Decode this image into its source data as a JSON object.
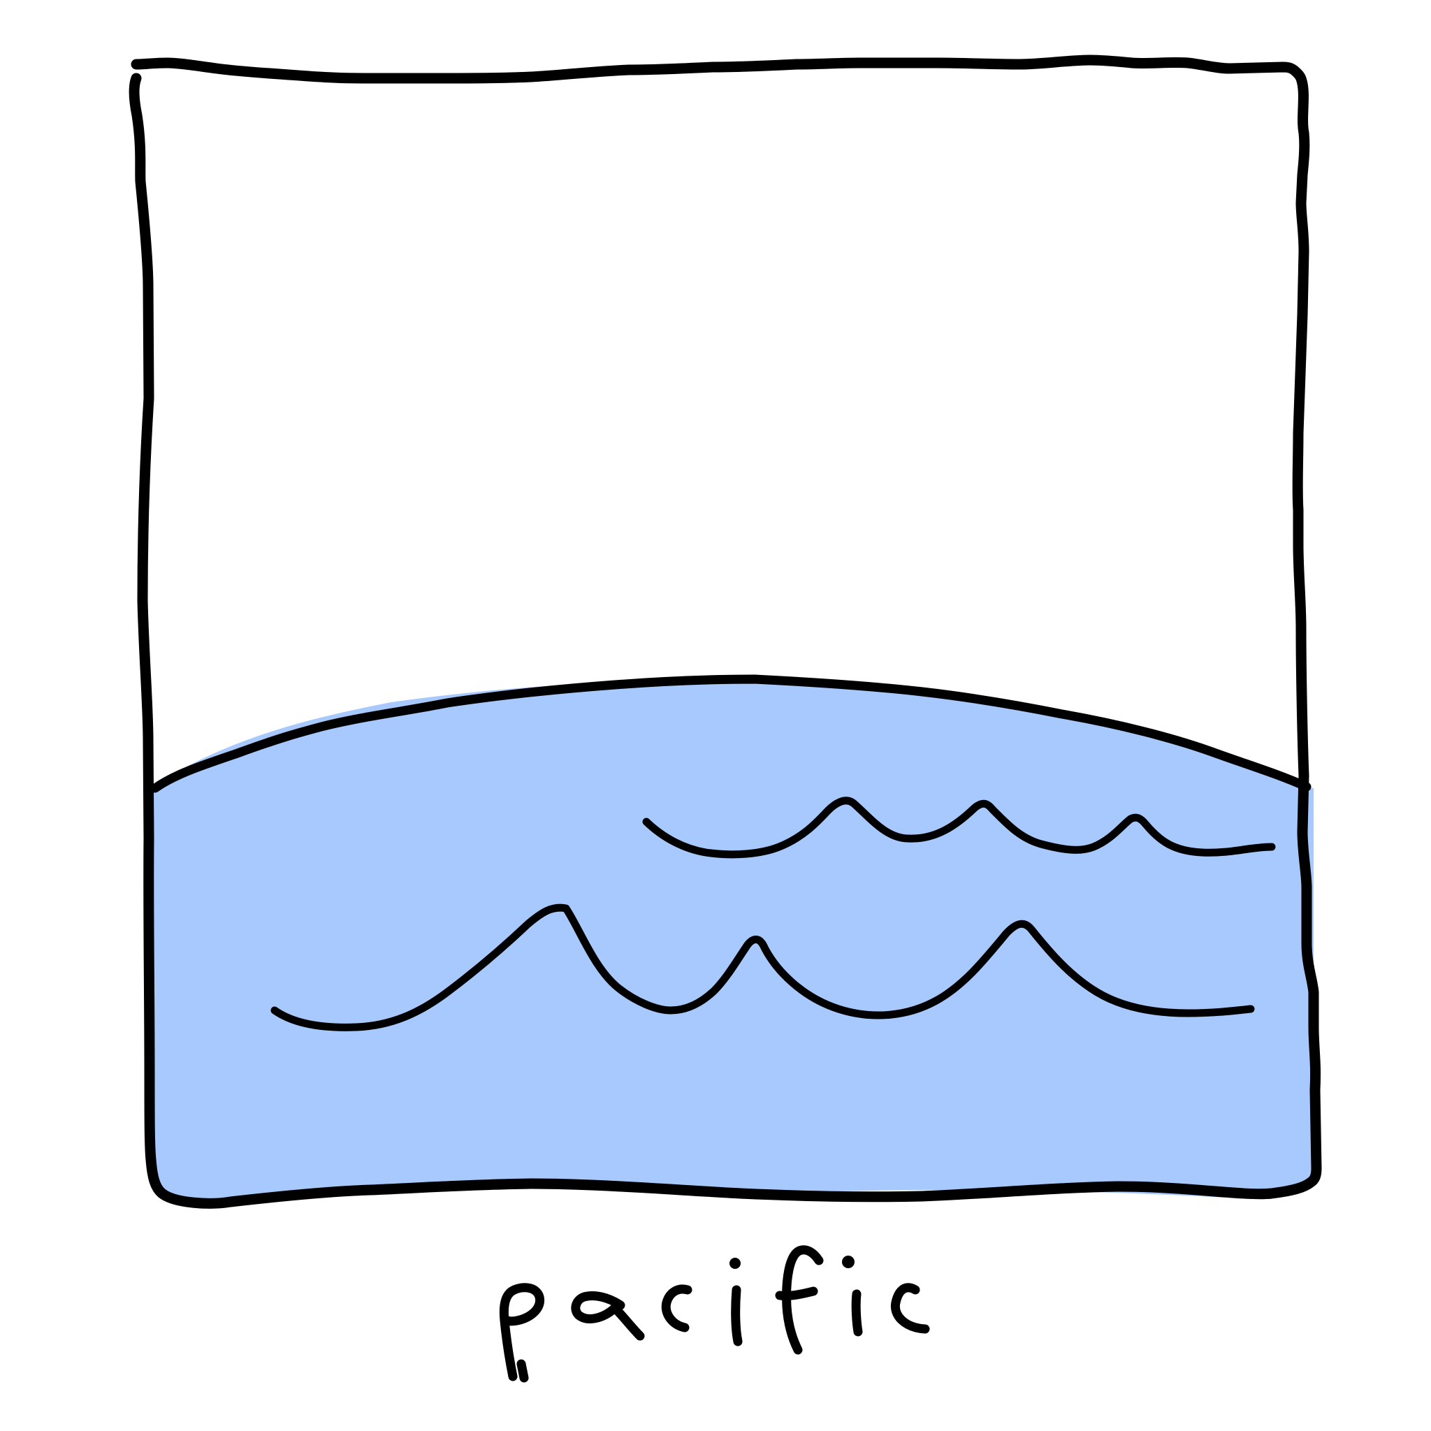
{
  "caption": "pacific",
  "colors": {
    "water": "#a7c9fd",
    "ink": "#000000",
    "background": "#ffffff"
  }
}
